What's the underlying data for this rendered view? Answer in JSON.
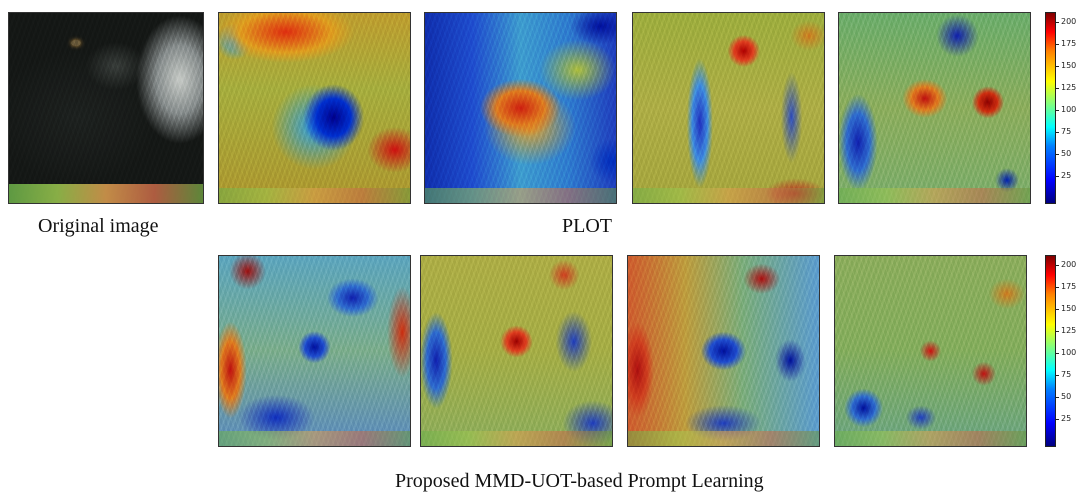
{
  "labels": {
    "original": "Original image",
    "plot": "PLOT",
    "proposed": "Proposed MMD-UOT-based Prompt Learning"
  },
  "colorbar": {
    "ticks": [
      "200",
      "175",
      "150",
      "125",
      "100",
      "75",
      "50",
      "25"
    ]
  },
  "panels": {
    "original": "dark dog close-up",
    "plot_row": [
      "PLOT attention map 1",
      "PLOT attention map 2",
      "PLOT attention map 3",
      "PLOT attention map 4"
    ],
    "proposed_row": [
      "Proposed attention map 1",
      "Proposed attention map 2",
      "Proposed attention map 3",
      "Proposed attention map 4"
    ]
  },
  "colors": {
    "colormap": "jet",
    "low": "#00007f",
    "high": "#7f0000"
  }
}
